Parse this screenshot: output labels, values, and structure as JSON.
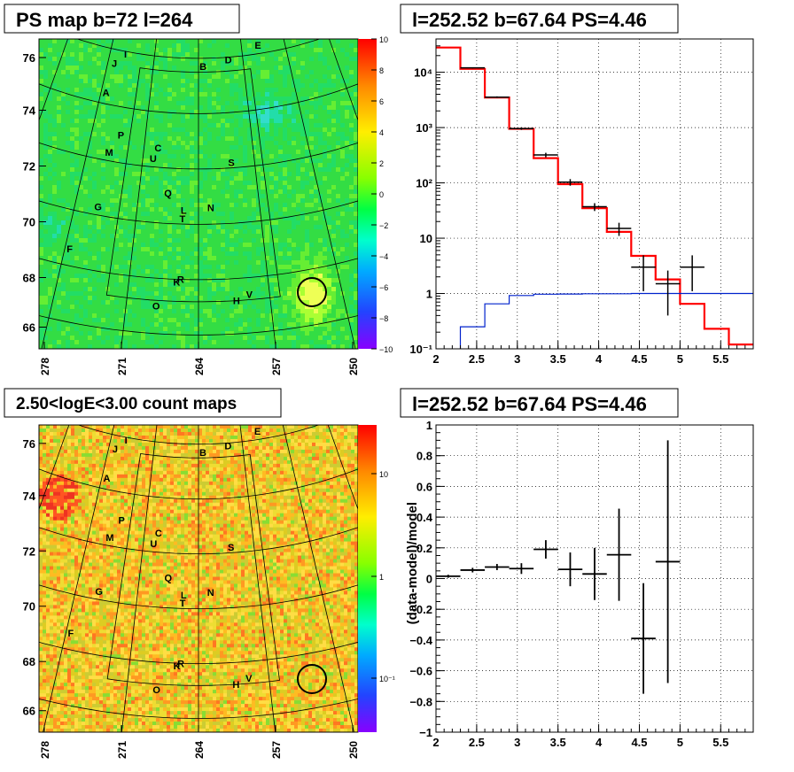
{
  "chart_data": [
    {
      "id": "ps-map",
      "type": "heatmap",
      "title": "PS map b=72 l=264",
      "x_ticks": [
        "278",
        "271",
        "264",
        "257",
        "250"
      ],
      "y_ticks": [
        "76",
        "74",
        "72",
        "70",
        "68",
        "66"
      ],
      "xlim": [
        278,
        250
      ],
      "ylim": [
        65.5,
        76.7
      ],
      "colorbar": {
        "scale": "linear",
        "range": [
          -10,
          10
        ],
        "ticks": [
          "10",
          "8",
          "6",
          "4",
          "2",
          "0",
          "−2",
          "−4",
          "−6",
          "−8",
          "−10"
        ]
      },
      "source_labels": [
        {
          "text": "I",
          "l": 275.6,
          "b": 75.9
        },
        {
          "text": "J",
          "l": 277.0,
          "b": 75.5
        },
        {
          "text": "B",
          "l": 263.3,
          "b": 75.7
        },
        {
          "text": "D",
          "l": 259.3,
          "b": 75.9
        },
        {
          "text": "E",
          "l": 254.3,
          "b": 76.3
        },
        {
          "text": "A",
          "l": 277.3,
          "b": 74.4
        },
        {
          "text": "P",
          "l": 274.2,
          "b": 73.0
        },
        {
          "text": "M",
          "l": 275.3,
          "b": 72.3
        },
        {
          "text": "C",
          "l": 269.2,
          "b": 72.7
        },
        {
          "text": "U",
          "l": 269.7,
          "b": 72.3
        },
        {
          "text": "S",
          "l": 259.9,
          "b": 72.2
        },
        {
          "text": "Q",
          "l": 267.6,
          "b": 71.1
        },
        {
          "text": "L",
          "l": 265.7,
          "b": 70.5
        },
        {
          "text": "N",
          "l": 262.6,
          "b": 70.6
        },
        {
          "text": "T",
          "l": 265.8,
          "b": 70.2
        },
        {
          "text": "G",
          "l": 275.4,
          "b": 70.3
        },
        {
          "text": "F",
          "l": 277.5,
          "b": 68.6
        },
        {
          "text": "R",
          "l": 265.8,
          "b": 68.0
        },
        {
          "text": "K",
          "l": 266.2,
          "b": 67.9
        },
        {
          "text": "V",
          "l": 259.0,
          "b": 67.4
        },
        {
          "text": "H",
          "l": 260.3,
          "b": 67.2
        },
        {
          "text": "O",
          "l": 268.1,
          "b": 67.0
        }
      ],
      "circle": {
        "l": 252.52,
        "b": 67.64
      }
    },
    {
      "id": "spectrum",
      "type": "line",
      "title": "l=252.52 b=67.64 PS=4.46",
      "xlim": [
        2,
        5.9
      ],
      "ylim": [
        0.1,
        40000
      ],
      "yscale": "log",
      "grid": true,
      "x_ticks": [
        "2",
        "2.5",
        "3",
        "3.5",
        "4",
        "4.5",
        "5",
        "5.5"
      ],
      "y_ticks": [
        "10⁻¹",
        "1",
        "10",
        "10²",
        "10³",
        "10⁴"
      ],
      "bin_edges": [
        2.0,
        2.3,
        2.6,
        2.9,
        3.2,
        3.5,
        3.8,
        4.1,
        4.4,
        4.7,
        5.0,
        5.3,
        5.6,
        5.9
      ],
      "series": [
        {
          "values": [
            28000,
            11500,
            3500,
            950,
            280,
            95,
            35,
            13,
            4.8,
            1.8,
            0.65,
            0.23,
            0.12
          ]
        },
        {
          "values": [
            null,
            0.25,
            0.65,
            0.92,
            0.97,
            0.98,
            0.99,
            0.99,
            1.0,
            1.0,
            1.0,
            1.0,
            1.0
          ]
        },
        {
          "points": [
            {
              "x": 2.45,
              "y": 12000,
              "err": 300
            },
            {
              "x": 2.75,
              "y": 3550,
              "err": 120
            },
            {
              "x": 3.05,
              "y": 960,
              "err": 50
            },
            {
              "x": 3.35,
              "y": 320,
              "err": 30
            },
            {
              "x": 3.65,
              "y": 103,
              "err": 14
            },
            {
              "x": 3.95,
              "y": 37,
              "err": 6
            },
            {
              "x": 4.25,
              "y": 15,
              "err": 4
            },
            {
              "x": 4.55,
              "y": 3,
              "err": 1.9
            },
            {
              "x": 4.85,
              "y": 1.5,
              "err": 1.1
            },
            {
              "x": 5.15,
              "y": 3,
              "err": 1.9
            }
          ]
        }
      ]
    },
    {
      "id": "count-map",
      "type": "heatmap",
      "title": "2.50<logE<3.00 count maps",
      "x_ticks": [
        "278",
        "271",
        "264",
        "257",
        "250"
      ],
      "y_ticks": [
        "76",
        "74",
        "72",
        "70",
        "68",
        "66"
      ],
      "xlim": [
        278,
        250
      ],
      "ylim": [
        65.5,
        76.7
      ],
      "colorbar": {
        "scale": "log",
        "ticks": [
          "10",
          "1",
          "10⁻¹"
        ]
      },
      "circle": {
        "l": 252.52,
        "b": 67.64
      }
    },
    {
      "id": "residuals",
      "type": "scatter",
      "title": "l=252.52 b=67.64 PS=4.46",
      "ylabel": "(data-model)/model",
      "xlim": [
        2,
        5.9
      ],
      "ylim": [
        -1,
        1
      ],
      "grid": true,
      "x_ticks": [
        "2",
        "2.5",
        "3",
        "3.5",
        "4",
        "4.5",
        "5",
        "5.5"
      ],
      "y_ticks": [
        "1",
        "0.8",
        "0.6",
        "0.4",
        "0.2",
        "0",
        "−0.2",
        "−0.4",
        "−0.6",
        "−0.8",
        "−1"
      ],
      "points": [
        {
          "x": 2.15,
          "y": 0.015,
          "xerr": 0.15,
          "err": 0.01
        },
        {
          "x": 2.45,
          "y": 0.055,
          "xerr": 0.15,
          "err": 0.015
        },
        {
          "x": 2.75,
          "y": 0.075,
          "xerr": 0.15,
          "err": 0.02
        },
        {
          "x": 3.05,
          "y": 0.065,
          "xerr": 0.15,
          "err": 0.035
        },
        {
          "x": 3.35,
          "y": 0.19,
          "xerr": 0.15,
          "err": 0.06
        },
        {
          "x": 3.65,
          "y": 0.06,
          "xerr": 0.15,
          "err": 0.11
        },
        {
          "x": 3.95,
          "y": 0.03,
          "xerr": 0.15,
          "err": 0.17
        },
        {
          "x": 4.25,
          "y": 0.155,
          "xerr": 0.15,
          "err": 0.3
        },
        {
          "x": 4.55,
          "y": -0.39,
          "xerr": 0.15,
          "err": 0.36
        },
        {
          "x": 4.85,
          "y": 0.11,
          "xerr": 0.15,
          "err": 0.79
        }
      ]
    }
  ]
}
